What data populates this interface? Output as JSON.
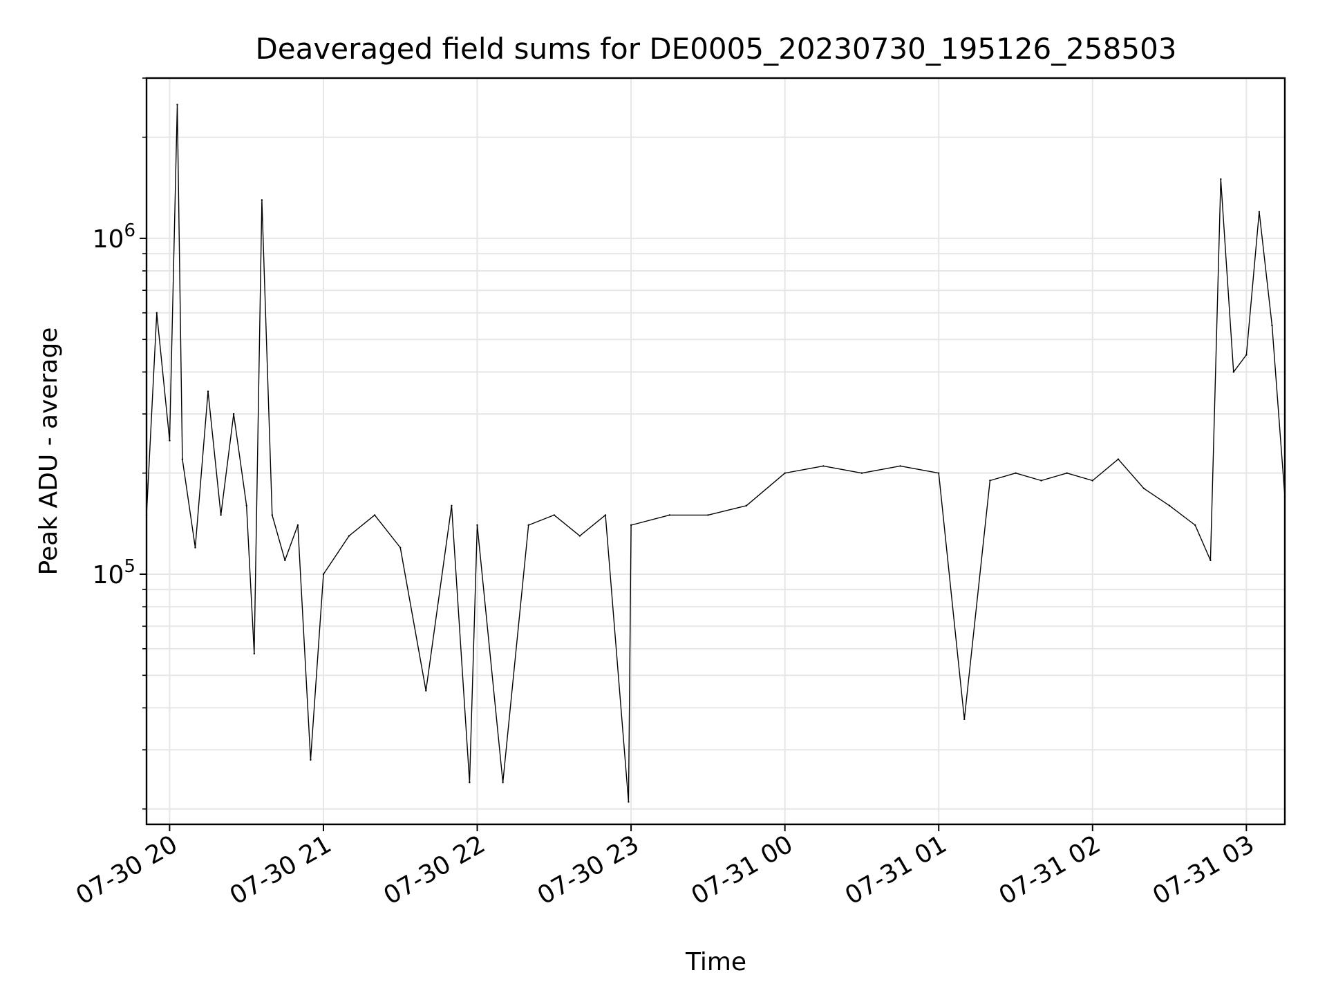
{
  "chart_data": {
    "type": "line",
    "title": "Deaveraged field sums for DE0005_20230730_195126_258503",
    "xlabel": "Time",
    "ylabel": "Peak ADU - average",
    "yscale": "log",
    "ylim": [
      18000,
      3000000
    ],
    "xlim": [
      "2023-07-30 19:51",
      "2023-07-31 03:15"
    ],
    "grid": true,
    "line_color": "#000000",
    "x_ticks": [
      {
        "value": "2023-07-30 20:00",
        "label": "07-30 20"
      },
      {
        "value": "2023-07-30 21:00",
        "label": "07-30 21"
      },
      {
        "value": "2023-07-30 22:00",
        "label": "07-30 22"
      },
      {
        "value": "2023-07-30 23:00",
        "label": "07-30 23"
      },
      {
        "value": "2023-07-31 00:00",
        "label": "07-31 00"
      },
      {
        "value": "2023-07-31 01:00",
        "label": "07-31 01"
      },
      {
        "value": "2023-07-31 02:00",
        "label": "07-31 02"
      },
      {
        "value": "2023-07-31 03:00",
        "label": "07-31 03"
      }
    ],
    "y_ticks": [
      {
        "value": 100000,
        "base": "10",
        "exp": "5"
      },
      {
        "value": 1000000,
        "base": "10",
        "exp": "6"
      }
    ],
    "series": [
      {
        "points": [
          [
            "2023-07-30 19:51",
            150000
          ],
          [
            "2023-07-30 19:55",
            600000
          ],
          [
            "2023-07-30 20:00",
            250000
          ],
          [
            "2023-07-30 20:03",
            2500000
          ],
          [
            "2023-07-30 20:05",
            220000
          ],
          [
            "2023-07-30 20:10",
            120000
          ],
          [
            "2023-07-30 20:15",
            350000
          ],
          [
            "2023-07-30 20:20",
            150000
          ],
          [
            "2023-07-30 20:25",
            300000
          ],
          [
            "2023-07-30 20:30",
            160000
          ],
          [
            "2023-07-30 20:33",
            58000
          ],
          [
            "2023-07-30 20:36",
            1300000
          ],
          [
            "2023-07-30 20:40",
            150000
          ],
          [
            "2023-07-30 20:45",
            110000
          ],
          [
            "2023-07-30 20:50",
            140000
          ],
          [
            "2023-07-30 20:55",
            28000
          ],
          [
            "2023-07-30 21:00",
            100000
          ],
          [
            "2023-07-30 21:10",
            130000
          ],
          [
            "2023-07-30 21:20",
            150000
          ],
          [
            "2023-07-30 21:30",
            120000
          ],
          [
            "2023-07-30 21:40",
            45000
          ],
          [
            "2023-07-30 21:50",
            160000
          ],
          [
            "2023-07-30 21:57",
            24000
          ],
          [
            "2023-07-30 22:00",
            140000
          ],
          [
            "2023-07-30 22:10",
            24000
          ],
          [
            "2023-07-30 22:20",
            140000
          ],
          [
            "2023-07-30 22:30",
            150000
          ],
          [
            "2023-07-30 22:40",
            130000
          ],
          [
            "2023-07-30 22:50",
            150000
          ],
          [
            "2023-07-30 22:59",
            21000
          ],
          [
            "2023-07-30 23:00",
            140000
          ],
          [
            "2023-07-30 23:15",
            150000
          ],
          [
            "2023-07-30 23:30",
            150000
          ],
          [
            "2023-07-30 23:45",
            160000
          ],
          [
            "2023-07-31 00:00",
            200000
          ],
          [
            "2023-07-31 00:15",
            210000
          ],
          [
            "2023-07-31 00:30",
            200000
          ],
          [
            "2023-07-31 00:45",
            210000
          ],
          [
            "2023-07-31 01:00",
            200000
          ],
          [
            "2023-07-31 01:10",
            37000
          ],
          [
            "2023-07-31 01:20",
            190000
          ],
          [
            "2023-07-31 01:30",
            200000
          ],
          [
            "2023-07-31 01:40",
            190000
          ],
          [
            "2023-07-31 01:50",
            200000
          ],
          [
            "2023-07-31 02:00",
            190000
          ],
          [
            "2023-07-31 02:10",
            220000
          ],
          [
            "2023-07-31 02:20",
            180000
          ],
          [
            "2023-07-31 02:30",
            160000
          ],
          [
            "2023-07-31 02:40",
            140000
          ],
          [
            "2023-07-31 02:46",
            110000
          ],
          [
            "2023-07-31 02:50",
            1500000
          ],
          [
            "2023-07-31 02:55",
            400000
          ],
          [
            "2023-07-31 03:00",
            450000
          ],
          [
            "2023-07-31 03:05",
            1200000
          ],
          [
            "2023-07-31 03:10",
            550000
          ],
          [
            "2023-07-31 03:15",
            170000
          ]
        ]
      }
    ]
  }
}
